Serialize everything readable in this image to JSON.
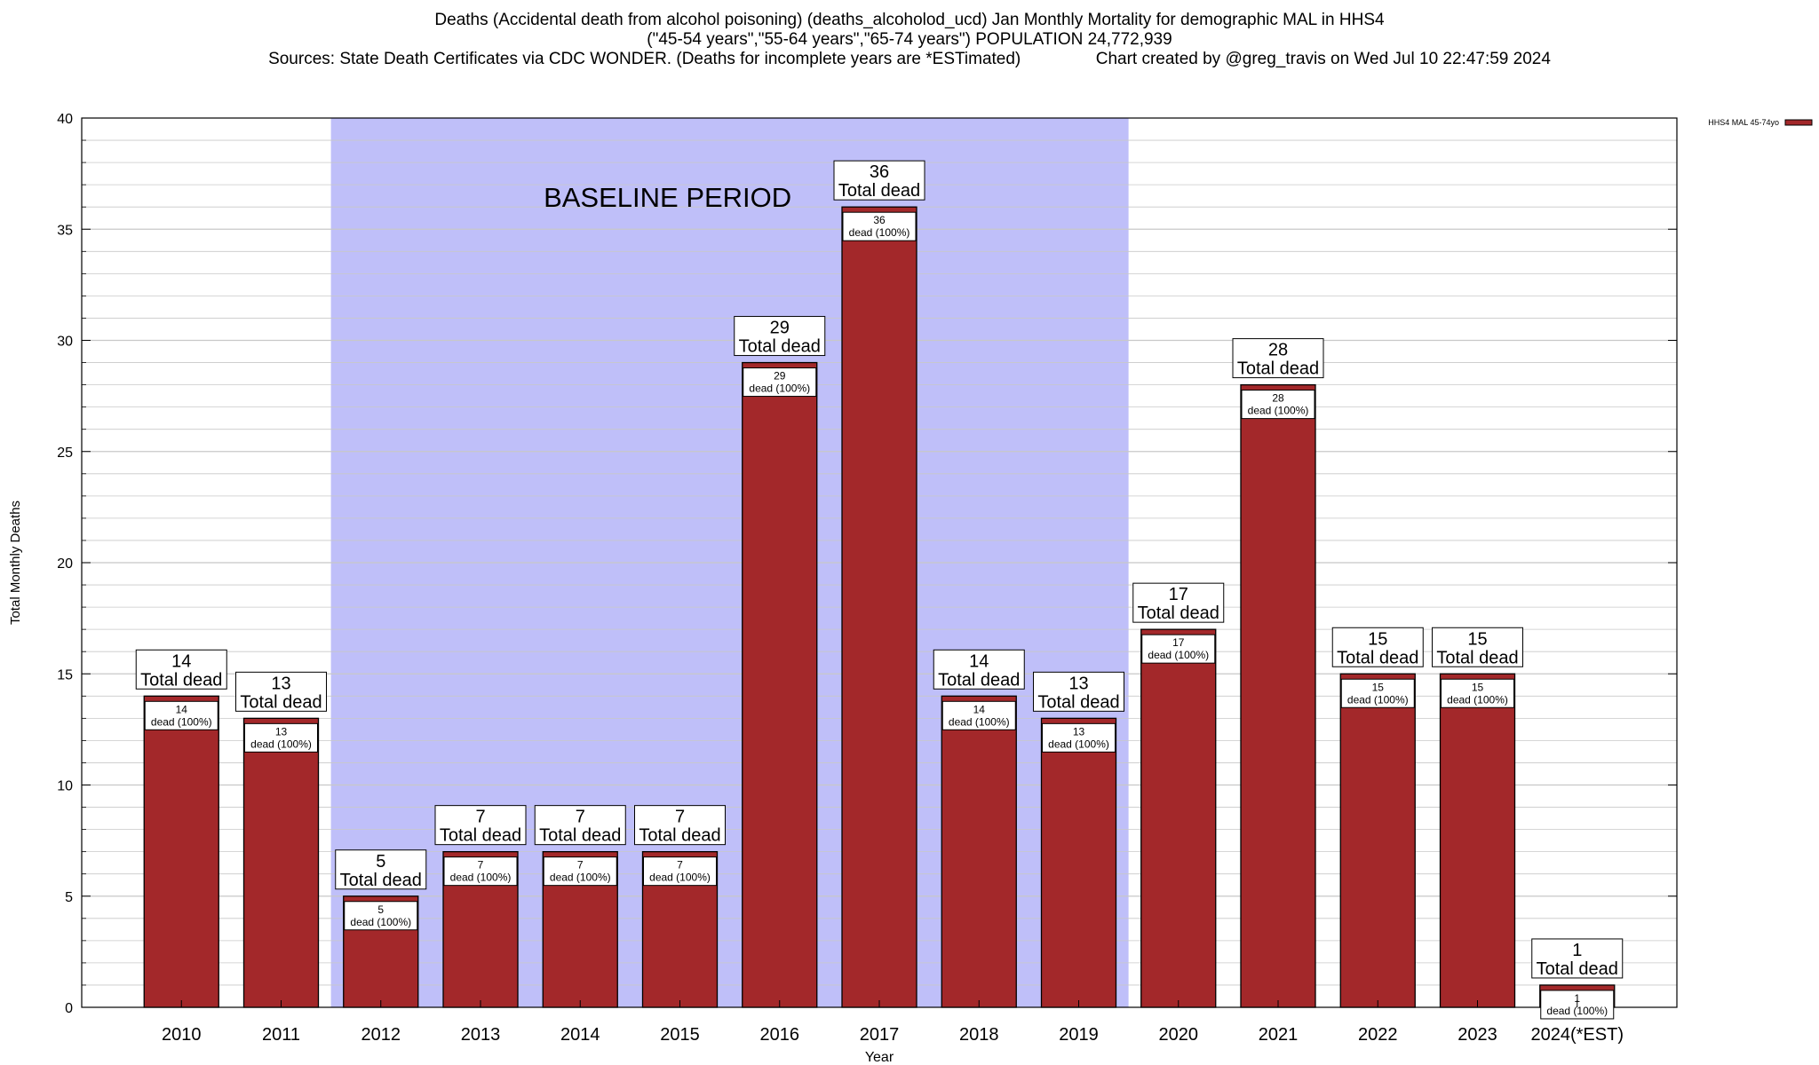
{
  "header": {
    "line1": "Deaths (Accidental death from alcohol poisoning) (deaths_alcoholod_ucd) Jan Monthly Mortality for demographic MAL in HHS4",
    "line2": "(\"45-54 years\",\"55-64 years\",\"65-74 years\") POPULATION 24,772,939",
    "line3": "Sources: State Death Certificates via CDC WONDER. (Deaths for incomplete years are *ESTimated)                Chart created by @greg_travis on Wed Jul 10 22:47:59 2024"
  },
  "colors": {
    "bar": "#a3282a",
    "baseline_band": "#bfbff9",
    "grid": "#c8c8c8"
  },
  "chart_data": {
    "type": "bar",
    "title": "Deaths (Accidental death from alcohol poisoning) (deaths_alcoholod_ucd) Jan Monthly Mortality for demographic MAL in HHS4",
    "xlabel": "Year",
    "ylabel": "Total Monthly Deaths",
    "ylim": [
      0,
      40
    ],
    "yticks": [
      0,
      5,
      10,
      15,
      20,
      25,
      30,
      35,
      40
    ],
    "categories": [
      "2010",
      "2011",
      "2012",
      "2013",
      "2014",
      "2015",
      "2016",
      "2017",
      "2018",
      "2019",
      "2020",
      "2021",
      "2022",
      "2023",
      "2024(*EST)"
    ],
    "series": [
      {
        "name": "HHS4 MAL 45-74yo",
        "values": [
          14,
          13,
          5,
          7,
          7,
          7,
          29,
          36,
          14,
          13,
          17,
          28,
          15,
          15,
          1
        ]
      }
    ],
    "top_label_suffix": "Total dead",
    "inner_label_suffix": "dead (100%)",
    "baseline": {
      "label": "BASELINE PERIOD",
      "start": "2012",
      "end": "2019"
    },
    "legend": {
      "position": "top-right",
      "entries": [
        "HHS4 MAL 45-74yo"
      ]
    },
    "grid": true
  }
}
